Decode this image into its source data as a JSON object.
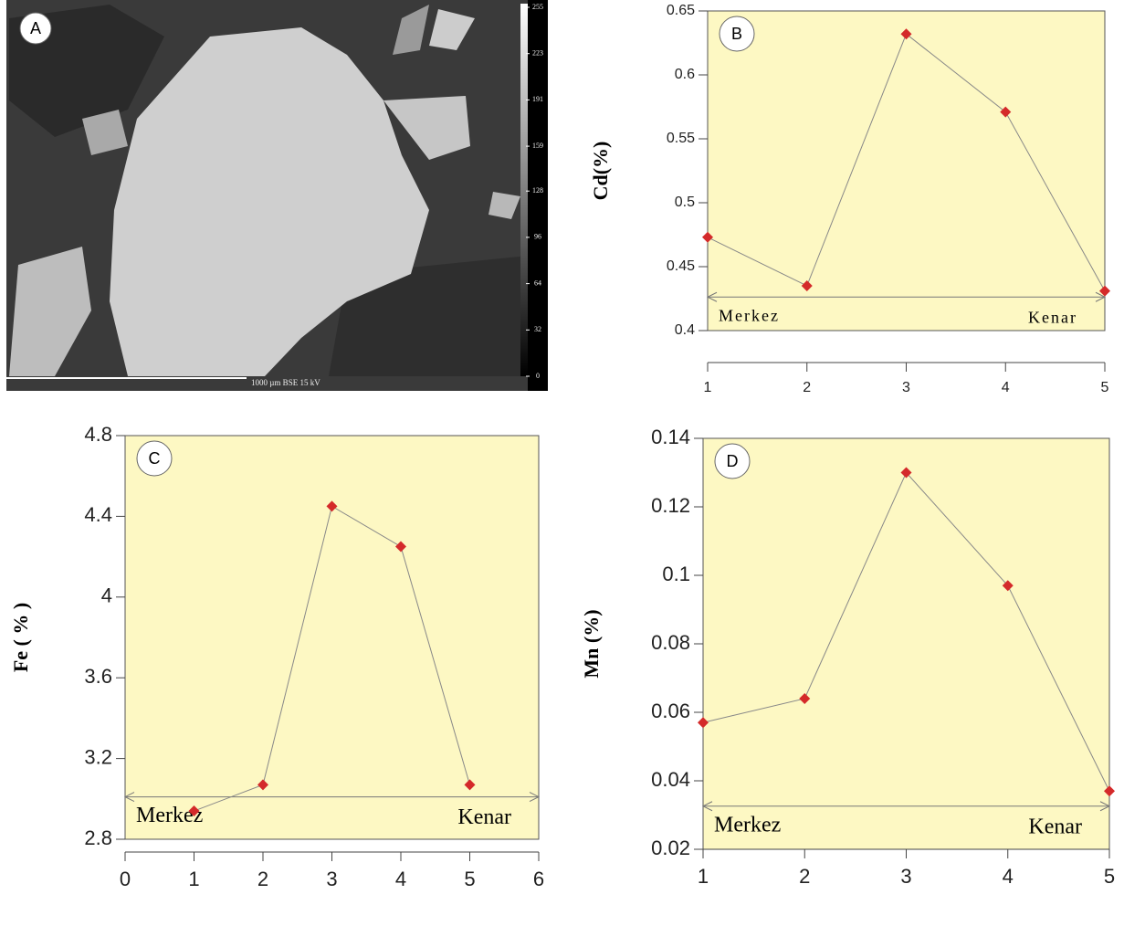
{
  "image": {
    "label": "A",
    "caption": "1000 µm BSE 15 kV",
    "colorbar_ticks": [
      255,
      223,
      191,
      159,
      128,
      96,
      64,
      32,
      0
    ],
    "colorbar_lim": [
      0,
      255
    ]
  },
  "chart_data": [
    {
      "type": "line",
      "label": "B",
      "y_label": "Cd(%)",
      "annotations": [
        "Merkez",
        "Kenar"
      ],
      "x": [
        1,
        2,
        3,
        4,
        5
      ],
      "xlim": [
        1,
        5
      ],
      "xticks": [
        1,
        2,
        3,
        4,
        5
      ],
      "ylim": [
        0.4,
        0.65
      ],
      "yticks": [
        0.4,
        0.45,
        0.5,
        0.55,
        0.6,
        0.65
      ],
      "series": [
        {
          "color": "#d42a2a",
          "values": [
            0.473,
            0.435,
            0.632,
            0.571,
            0.431
          ]
        }
      ]
    },
    {
      "type": "line",
      "label": "C",
      "y_label": "Fe ( % )",
      "annotations": [
        "Merkez",
        "Kenar"
      ],
      "x": [
        1,
        2,
        3,
        4,
        5
      ],
      "xlim": [
        0,
        6
      ],
      "xticks": [
        0,
        1,
        2,
        3,
        4,
        5,
        6
      ],
      "ylim": [
        2.8,
        4.8
      ],
      "yticks": [
        2.8,
        3.2,
        3.6,
        4,
        4.4,
        4.8
      ],
      "series": [
        {
          "color": "#d42a2a",
          "values": [
            2.94,
            3.07,
            4.45,
            4.25,
            3.07
          ]
        }
      ]
    },
    {
      "type": "line",
      "label": "D",
      "y_label": "Mn (%)",
      "annotations": [
        "Merkez",
        "Kenar"
      ],
      "x": [
        1,
        2,
        3,
        4,
        5
      ],
      "xlim": [
        1,
        5
      ],
      "xticks": [
        1,
        2,
        3,
        4,
        5
      ],
      "ylim": [
        0.02,
        0.14
      ],
      "yticks": [
        0.02,
        0.04,
        0.06,
        0.08,
        0.1,
        0.12,
        0.14
      ],
      "series": [
        {
          "color": "#d42a2a",
          "values": [
            0.057,
            0.064,
            0.13,
            0.097,
            0.037
          ]
        }
      ]
    }
  ]
}
